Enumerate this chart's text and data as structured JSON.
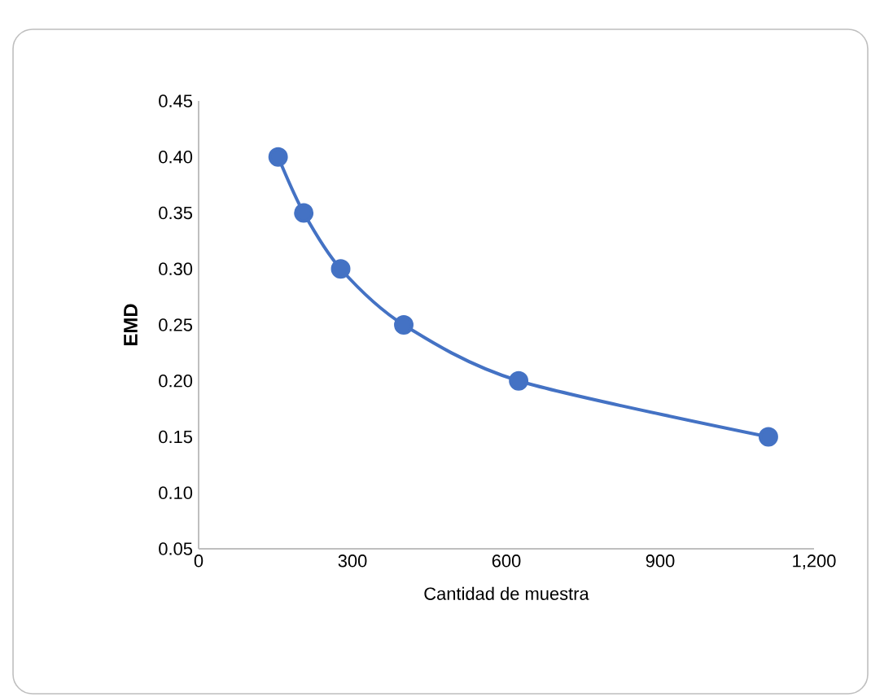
{
  "chart_data": {
    "type": "line",
    "xlabel": "Cantidad de muestra",
    "ylabel": "EMD",
    "x": [
      155,
      205,
      277,
      400,
      624,
      1111
    ],
    "series": [
      {
        "color": "#4472c4",
        "values": [
          0.4,
          0.35,
          0.3,
          0.25,
          0.2,
          0.15
        ]
      }
    ],
    "xlim": [
      0,
      1200
    ],
    "xticks": [
      0,
      300,
      600,
      900,
      {
        "value": 1200,
        "label": "1,200"
      }
    ],
    "ylim": [
      0.05,
      0.45
    ],
    "yticks": [
      {
        "value": 0.05,
        "label": "0.05"
      },
      {
        "value": 0.1,
        "label": "0.10"
      },
      {
        "value": 0.15,
        "label": "0.15"
      },
      {
        "value": 0.2,
        "label": "0.20"
      },
      {
        "value": 0.25,
        "label": "0.25"
      },
      {
        "value": 0.3,
        "label": "0.30"
      },
      {
        "value": 0.35,
        "label": "0.35"
      },
      {
        "value": 0.4,
        "label": "0.40"
      },
      {
        "value": 0.45,
        "label": "0.45"
      }
    ],
    "grid": false,
    "legend": false,
    "marker": "circle",
    "line_style": "solid"
  }
}
